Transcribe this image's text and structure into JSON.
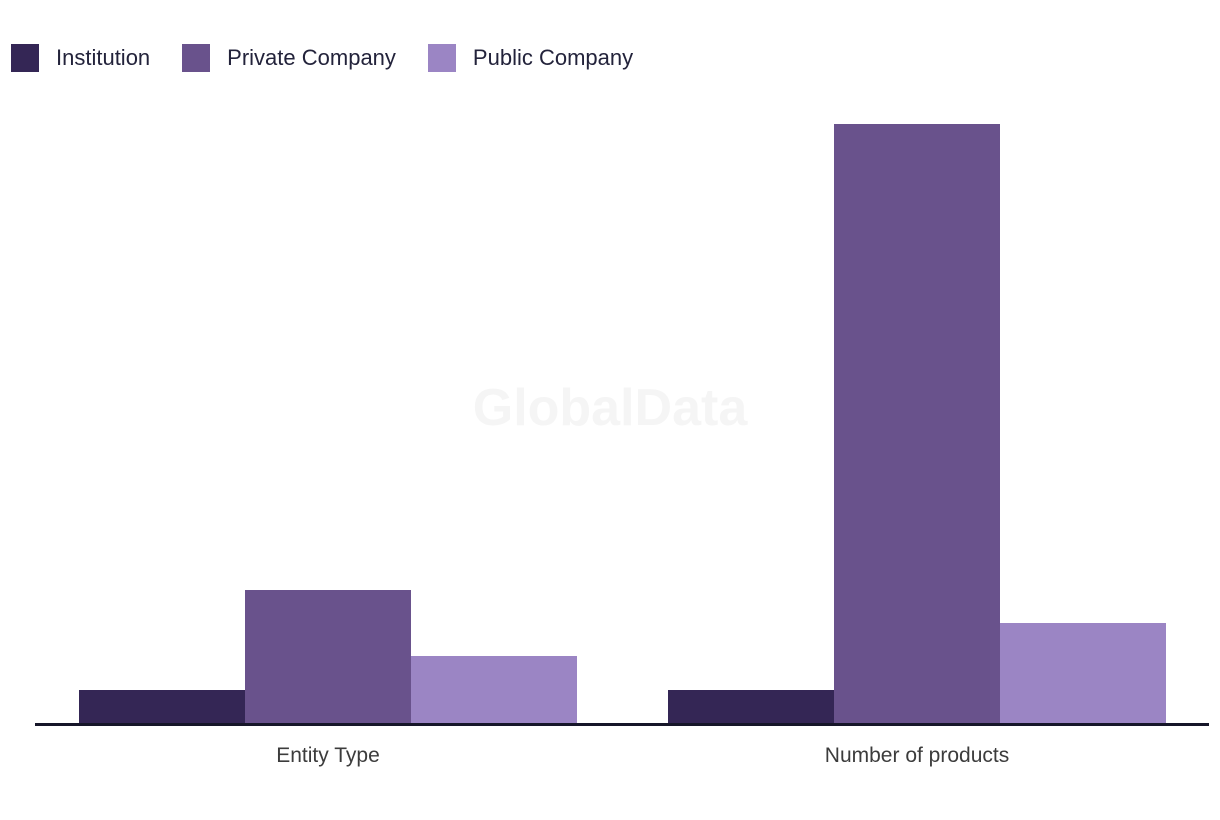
{
  "chart_data": {
    "type": "bar",
    "categories": [
      "Entity Type",
      "Number of products"
    ],
    "series": [
      {
        "name": "Institution",
        "color": "#342655",
        "values": [
          1,
          1
        ]
      },
      {
        "name": "Private Company",
        "color": "#69528C",
        "values": [
          4,
          18
        ]
      },
      {
        "name": "Public Company",
        "color": "#9B85C4",
        "values": [
          2,
          3
        ]
      }
    ],
    "title": "",
    "xlabel": "",
    "ylabel": "",
    "ylim": [
      0,
      18
    ],
    "grid": false,
    "legend_position": "top-left",
    "watermark": "GlobalData"
  },
  "colors": {
    "axis_line": "#161629",
    "x_label_text": "#3C3C3C",
    "legend_text": "#23233B",
    "watermark_text": "#F5F5F5",
    "background": "#FFFFFF"
  }
}
